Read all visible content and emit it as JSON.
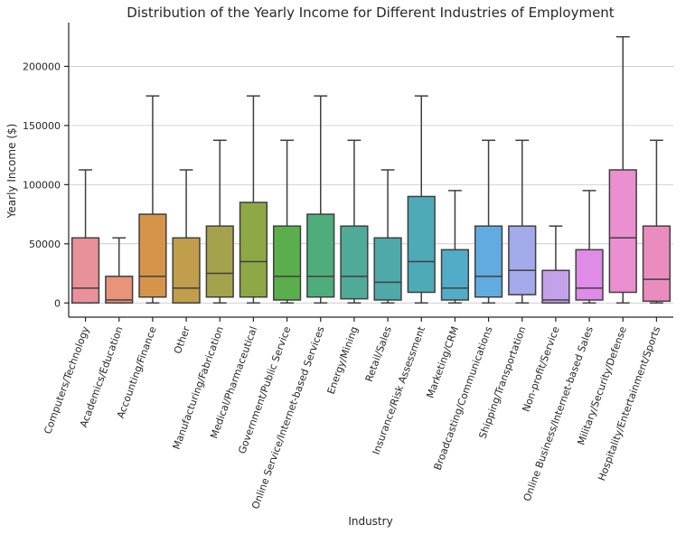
{
  "chart_data": {
    "type": "box",
    "title": "Distribution of the Yearly Income for Different Industries of Employment",
    "xlabel": "Industry",
    "ylabel": "Yearly Income ($)",
    "ylim": [
      -12000,
      237000
    ],
    "yticks": [
      0,
      50000,
      100000,
      150000,
      200000
    ],
    "ytick_labels": [
      "0",
      "50000",
      "100000",
      "150000",
      "200000"
    ],
    "grid": "horizontal",
    "colors": {
      "grid": "#c8c8c8",
      "line": "#3f3f3f",
      "axis": "#262626"
    },
    "categories": [
      {
        "name": "Computers/Technology",
        "color": "#e8919a",
        "min": 0,
        "q1": 0,
        "median": 12500,
        "q3": 55000,
        "max": 112500
      },
      {
        "name": "Academics/Education",
        "color": "#e8937a",
        "min": 0,
        "q1": 0,
        "median": 2500,
        "q3": 22500,
        "max": 55000
      },
      {
        "name": "Accounting/Finance",
        "color": "#d6944a",
        "min": 0,
        "q1": 5000,
        "median": 22500,
        "q3": 75000,
        "max": 175000
      },
      {
        "name": "Other",
        "color": "#c09e4c",
        "min": 0,
        "q1": 0,
        "median": 12500,
        "q3": 55000,
        "max": 112500
      },
      {
        "name": "Manufacturing/Fabrication",
        "color": "#a4a24d",
        "min": 0,
        "q1": 5000,
        "median": 25000,
        "q3": 65000,
        "max": 137500
      },
      {
        "name": "Medical/Pharmaceutical",
        "color": "#8fa846",
        "min": 0,
        "q1": 5000,
        "median": 35000,
        "q3": 85000,
        "max": 175000
      },
      {
        "name": "Government/Public Service",
        "color": "#5aaf4c",
        "min": 0,
        "q1": 2500,
        "median": 22500,
        "q3": 65000,
        "max": 137500
      },
      {
        "name": "Online Service/Internet-based Services",
        "color": "#4fad7c",
        "min": 0,
        "q1": 5000,
        "median": 22500,
        "q3": 75000,
        "max": 175000
      },
      {
        "name": "Energy/Mining",
        "color": "#4faa98",
        "min": 0,
        "q1": 3500,
        "median": 22500,
        "q3": 65000,
        "max": 137500
      },
      {
        "name": "Retail/Sales",
        "color": "#4ea9a8",
        "min": 0,
        "q1": 2500,
        "median": 17500,
        "q3": 55000,
        "max": 112500
      },
      {
        "name": "Insurance/Risk Assessment",
        "color": "#4eaab7",
        "min": 0,
        "q1": 9000,
        "median": 35000,
        "q3": 90000,
        "max": 175000
      },
      {
        "name": "Marketing/CRM",
        "color": "#52acc8",
        "min": 0,
        "q1": 2500,
        "median": 12500,
        "q3": 45000,
        "max": 95000
      },
      {
        "name": "Broadcasting/Communications",
        "color": "#62abe0",
        "min": 0,
        "q1": 5000,
        "median": 22500,
        "q3": 65000,
        "max": 137500
      },
      {
        "name": "Shipping/Transportation",
        "color": "#a2aaea",
        "min": 0,
        "q1": 7000,
        "median": 27500,
        "q3": 65000,
        "max": 137500
      },
      {
        "name": "Non-profit/Service",
        "color": "#c3a2ea",
        "min": 0,
        "q1": 0,
        "median": 2500,
        "q3": 27500,
        "max": 65000
      },
      {
        "name": "Online Business/Internet-based Sales",
        "color": "#df8ce6",
        "min": 0,
        "q1": 2500,
        "median": 12500,
        "q3": 45000,
        "max": 95000
      },
      {
        "name": "Military/Security/Defense",
        "color": "#ea8fd0",
        "min": 0,
        "q1": 9000,
        "median": 55000,
        "q3": 112500,
        "max": 225000
      },
      {
        "name": "Hospitality/Entertainment/Sports",
        "color": "#ea8dbe",
        "min": 0,
        "q1": 1500,
        "median": 20000,
        "q3": 65000,
        "max": 137500
      }
    ]
  }
}
